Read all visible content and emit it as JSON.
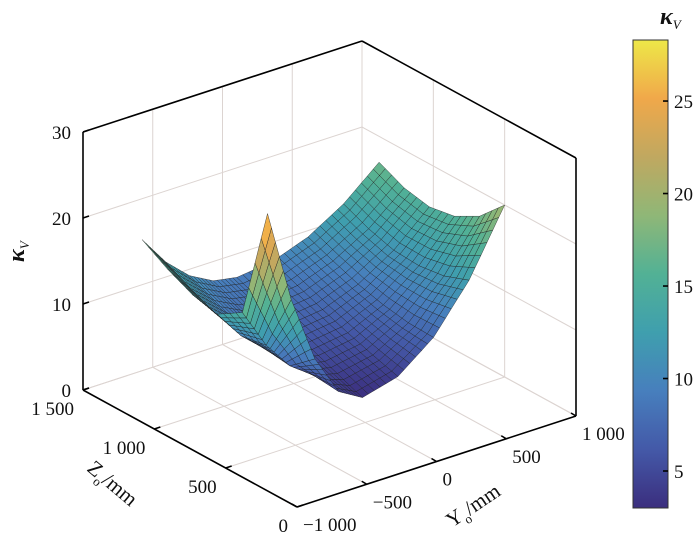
{
  "chart_data": {
    "type": "surface",
    "title": "",
    "xlabel": {
      "main": "Y",
      "sub": "o",
      "unit": "/mm"
    },
    "ylabel": {
      "main": "Z",
      "sub": "o",
      "unit": "/mm"
    },
    "zlabel": {
      "main": "κ",
      "sub": "V"
    },
    "colorbar_label": {
      "main": "κ",
      "sub": "V"
    },
    "xlim": [
      -1000,
      1000
    ],
    "ylim": [
      0,
      1500
    ],
    "zlim": [
      0,
      30
    ],
    "xticks": [
      -1000,
      -500,
      0,
      500,
      1000
    ],
    "xtick_labels": [
      "−1 000",
      "−500",
      "0",
      "500",
      "1 000"
    ],
    "yticks": [
      0,
      500,
      1000,
      1500
    ],
    "ytick_labels": [
      "0",
      "500",
      "1 000",
      "1 500"
    ],
    "zticks": [
      0,
      10,
      20,
      30
    ],
    "ztick_labels": [
      "0",
      "10",
      "20",
      "30"
    ],
    "colorbar": {
      "range": [
        3,
        28.3
      ],
      "ticks": [
        5,
        10,
        15,
        20,
        25
      ],
      "tick_labels": [
        "5",
        "10",
        "15",
        "20",
        "25"
      ],
      "colormap": "parula",
      "stops": [
        "#3b2e7e",
        "#4459a8",
        "#477fbd",
        "#3f9fae",
        "#52b195",
        "#8fb777",
        "#c0a860",
        "#f0a84a",
        "#eee848"
      ]
    },
    "grid": true,
    "surface": {
      "Y": [
        -700,
        -530,
        -360,
        -190,
        -20,
        235,
        490,
        745,
        1000
      ],
      "Z": [
        500,
        676,
        852,
        1028,
        1204,
        1380
      ],
      "kappa": [
        [
          28.0,
          17.1,
          9.3,
          4.6,
          3.0,
          4.1,
          7.3,
          12.6,
          20.0
        ],
        [
          14.9,
          10.2,
          6.9,
          4.9,
          4.2,
          5.0,
          7.4,
          11.5,
          17.1
        ],
        [
          13.1,
          9.7,
          7.3,
          5.9,
          5.4,
          6.0,
          7.9,
          11.1,
          15.5
        ],
        [
          13.8,
          10.7,
          8.4,
          7.1,
          6.6,
          7.1,
          8.7,
          11.3,
          15.0
        ],
        [
          15.2,
          12.0,
          9.7,
          8.3,
          7.8,
          8.3,
          9.8,
          12.2,
          15.6
        ],
        [
          17.0,
          13.5,
          11.0,
          9.5,
          9.0,
          9.5,
          11.0,
          13.5,
          17.0
        ]
      ]
    }
  }
}
